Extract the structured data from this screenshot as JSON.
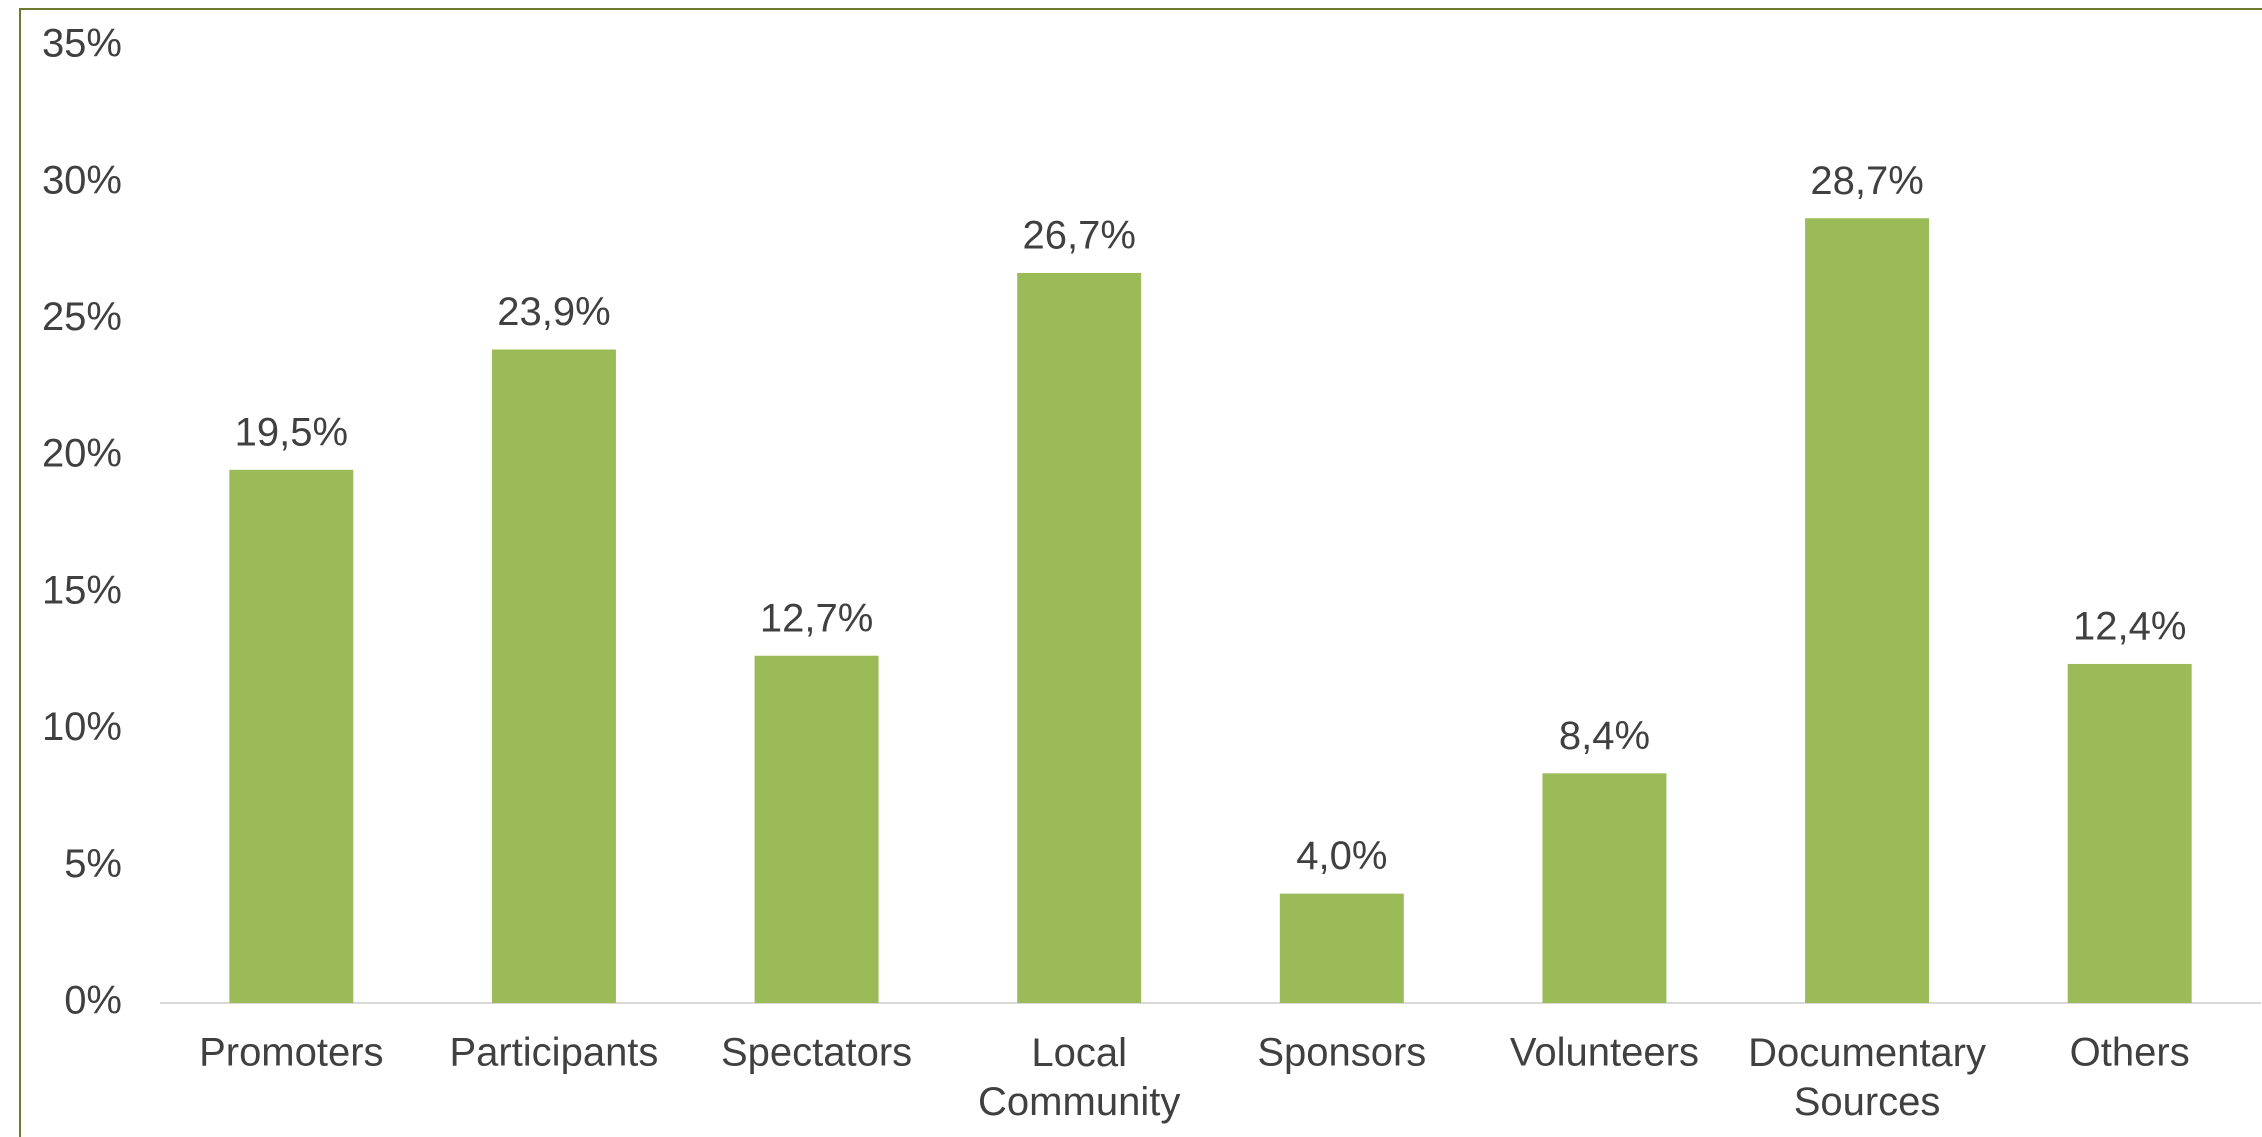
{
  "chart_data": {
    "type": "bar",
    "categories": [
      "Promoters",
      "Participants",
      "Spectators",
      "Local Community",
      "Sponsors",
      "Volunteers",
      "Documentary Sources",
      "Others"
    ],
    "values": [
      19.5,
      23.9,
      12.7,
      26.7,
      4.0,
      8.4,
      28.7,
      12.4
    ],
    "value_labels": [
      "19,5%",
      "23,9%",
      "12,7%",
      "26,7%",
      "4,0%",
      "8,4%",
      "28,7%",
      "12,4%"
    ],
    "color": "#9bbb59",
    "ylim": [
      0,
      35
    ],
    "yticks": [
      {
        "value": 0,
        "label": "0%"
      },
      {
        "value": 5,
        "label": "5%"
      },
      {
        "value": 10,
        "label": "10%"
      },
      {
        "value": 15,
        "label": "15%"
      },
      {
        "value": 20,
        "label": "20%"
      },
      {
        "value": 25,
        "label": "25%"
      },
      {
        "value": 30,
        "label": "30%"
      },
      {
        "value": 35,
        "label": "35%"
      }
    ],
    "grid": false
  }
}
